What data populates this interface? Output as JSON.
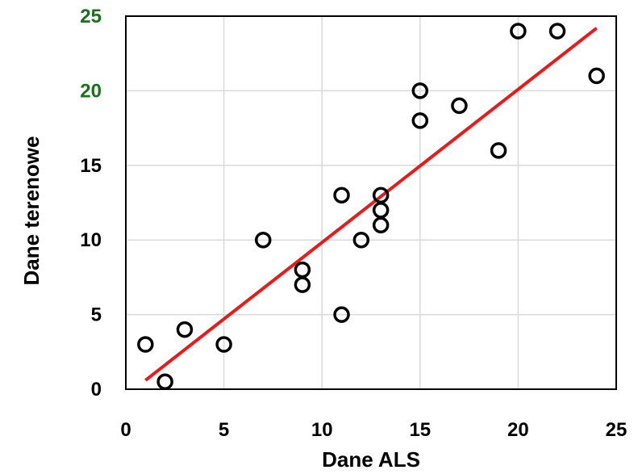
{
  "chart_data": {
    "type": "scatter",
    "title": "",
    "xlabel": "Dane ALS",
    "ylabel": "Dane terenowe",
    "xlim": [
      0,
      25
    ],
    "ylim": [
      0,
      25
    ],
    "x_ticks": [
      "0",
      "5",
      "10",
      "15",
      "20",
      "25"
    ],
    "y_ticks": [
      "0",
      "5",
      "10",
      "15",
      "20",
      "25"
    ],
    "y_tick_colors": {
      "0": "#000000",
      "5": "#000000",
      "10": "#000000",
      "15": "#000000",
      "20": "#1f6e1f",
      "25": "#1f6e1f"
    },
    "grid": true,
    "series": [
      {
        "points": [
          [
            1,
            3
          ],
          [
            2,
            0.5
          ],
          [
            3,
            4
          ],
          [
            5,
            3
          ],
          [
            7,
            10
          ],
          [
            9,
            8
          ],
          [
            9,
            7
          ],
          [
            11,
            13
          ],
          [
            11,
            5
          ],
          [
            12,
            10
          ],
          [
            13,
            13
          ],
          [
            13,
            12
          ],
          [
            13,
            11
          ],
          [
            15,
            20
          ],
          [
            15,
            18
          ],
          [
            17,
            19
          ],
          [
            19,
            16
          ],
          [
            20,
            24
          ],
          [
            22,
            24
          ],
          [
            24,
            21
          ]
        ],
        "marker": "open-circle",
        "color": "#000000"
      }
    ],
    "trendline": {
      "x": [
        1,
        24
      ],
      "y": [
        0.6,
        24.2
      ],
      "color": "#e61c1c"
    }
  }
}
